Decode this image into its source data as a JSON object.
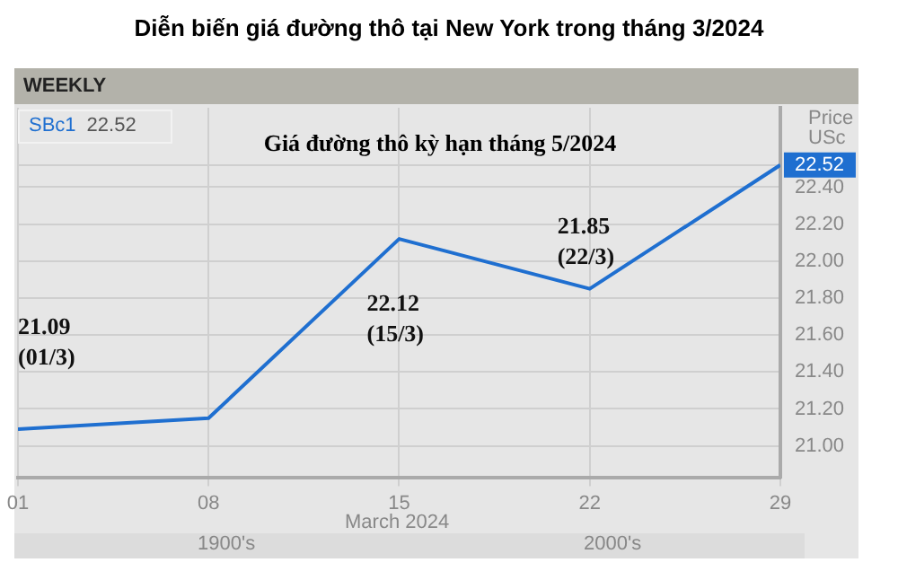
{
  "chart_data": {
    "type": "line",
    "title": "Diễn biến giá đường thô tại New York trong tháng 3/2024",
    "subtitle": "Giá đường thô kỳ hạn tháng 5/2024",
    "xlabel": "March 2024",
    "ylabel": "Price USc",
    "x": [
      1,
      8,
      15,
      22,
      29
    ],
    "series": [
      {
        "name": "SBc1",
        "color": "#1f6fd0",
        "values": [
          21.09,
          21.15,
          22.12,
          21.85,
          22.52
        ],
        "value_labels": [
          "21.09\n(01/3)",
          null,
          "22.12\n(15/3)",
          "21.85\n(22/3)",
          null
        ]
      }
    ],
    "xlim": [
      1,
      29
    ],
    "xticks": [
      {
        "value": 1,
        "label": "01"
      },
      {
        "value": 8,
        "label": "08"
      },
      15,
      22,
      29
    ],
    "ylim": [
      20.83,
      22.83
    ],
    "yticks": [
      {
        "value": 21,
        "label": "21.00"
      },
      {
        "value": 21.2,
        "label": "21.20"
      },
      {
        "value": 21.4,
        "label": "21.40"
      },
      {
        "value": 21.6,
        "label": "21.60"
      },
      {
        "value": 21.8,
        "label": "21.80"
      },
      {
        "value": 22,
        "label": "22.00"
      },
      {
        "value": 22.2,
        "label": "22.20"
      },
      {
        "value": 22.4,
        "label": "22.40"
      },
      {
        "value": 22.52,
        "label": "22.52"
      }
    ],
    "annotations": [
      "WEEKLY",
      "22.52",
      "1900's",
      "2000's"
    ],
    "grid": true,
    "legend": "top left",
    "marker": "none",
    "line_style": "solid"
  }
}
